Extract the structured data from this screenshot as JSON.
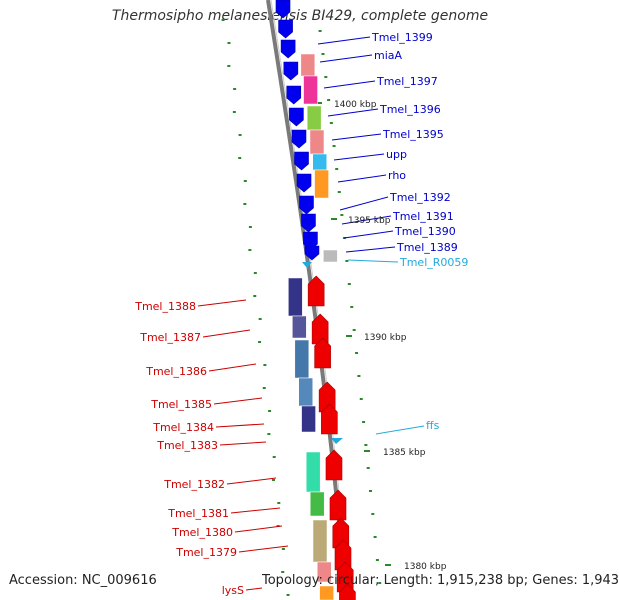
{
  "title": "Thermosipho melanesiensis BI429, complete genome",
  "accession": "Accession: NC_009616",
  "topology": "Topology: circular; Length: 1,915,238 bp; Genes: 1,943",
  "colors": {
    "forward_label": "#0000cc",
    "reverse_label": "#cc0000",
    "rna_label": "#22aadd",
    "backbone": "#888888",
    "tick": "#2a8a2a"
  },
  "kbp_labels": [
    "1400 kbp",
    "1395 kbp",
    "1390 kbp",
    "1385 kbp",
    "1380 kbp"
  ],
  "forward_genes": [
    {
      "label": "Tmel_1399",
      "color": "#0000ee",
      "arrow": "blue-gene-arrow",
      "cog": ""
    },
    {
      "label": "miaA",
      "color": "#0000ee",
      "arrow": "blue-gene-arrow",
      "cog": "#ee8888"
    },
    {
      "label": "Tmel_1397",
      "color": "#0000ee",
      "arrow": "blue-gene-arrow",
      "cog": "#ee3399"
    },
    {
      "label": "Tmel_1396",
      "color": "#0000ee",
      "arrow": "blue-gene-arrow",
      "cog": "#88cc44"
    },
    {
      "label": "Tmel_1395",
      "color": "#0000ee",
      "arrow": "blue-gene-arrow",
      "cog": "#ee8888"
    },
    {
      "label": "upp",
      "color": "#0000ee",
      "arrow": "blue-gene-arrow",
      "cog": "#33bbee"
    },
    {
      "label": "rho",
      "color": "#0000ee",
      "arrow": "blue-gene-arrow",
      "cog": "#ff9922"
    },
    {
      "label": "Tmel_1392",
      "color": "#0000ee",
      "arrow": "blue-gene-arrow",
      "cog": ""
    },
    {
      "label": "Tmel_1391",
      "color": "#0000ee",
      "arrow": "blue-gene-arrow",
      "cog": ""
    },
    {
      "label": "Tmel_1390",
      "color": "#0000ee",
      "arrow": "blue-gene-arrow",
      "cog": ""
    },
    {
      "label": "Tmel_1389",
      "color": "#0000ee",
      "arrow": "blue-gene-arrow",
      "cog": "#bbbbbb"
    }
  ],
  "forward_rna": [
    {
      "label": "Tmel_R0059",
      "color": "#22aadd"
    },
    {
      "label": "ffs",
      "color": "#22aadd"
    }
  ],
  "reverse_genes": [
    {
      "label": "Tmel_1388",
      "color": "#ee0000"
    },
    {
      "label": "Tmel_1387",
      "color": "#ee0000"
    },
    {
      "label": "Tmel_1386",
      "color": "#ee0000"
    },
    {
      "label": "Tmel_1385",
      "color": "#ee0000"
    },
    {
      "label": "Tmel_1384",
      "color": "#ee0000"
    },
    {
      "label": "Tmel_1383",
      "color": "#ee0000"
    },
    {
      "label": "Tmel_1382",
      "color": "#ee0000"
    },
    {
      "label": "Tmel_1381",
      "color": "#ee0000"
    },
    {
      "label": "Tmel_1380",
      "color": "#ee0000"
    },
    {
      "label": "Tmel_1379",
      "color": "#ee0000"
    },
    {
      "label": "lysS",
      "color": "#ee0000"
    }
  ]
}
